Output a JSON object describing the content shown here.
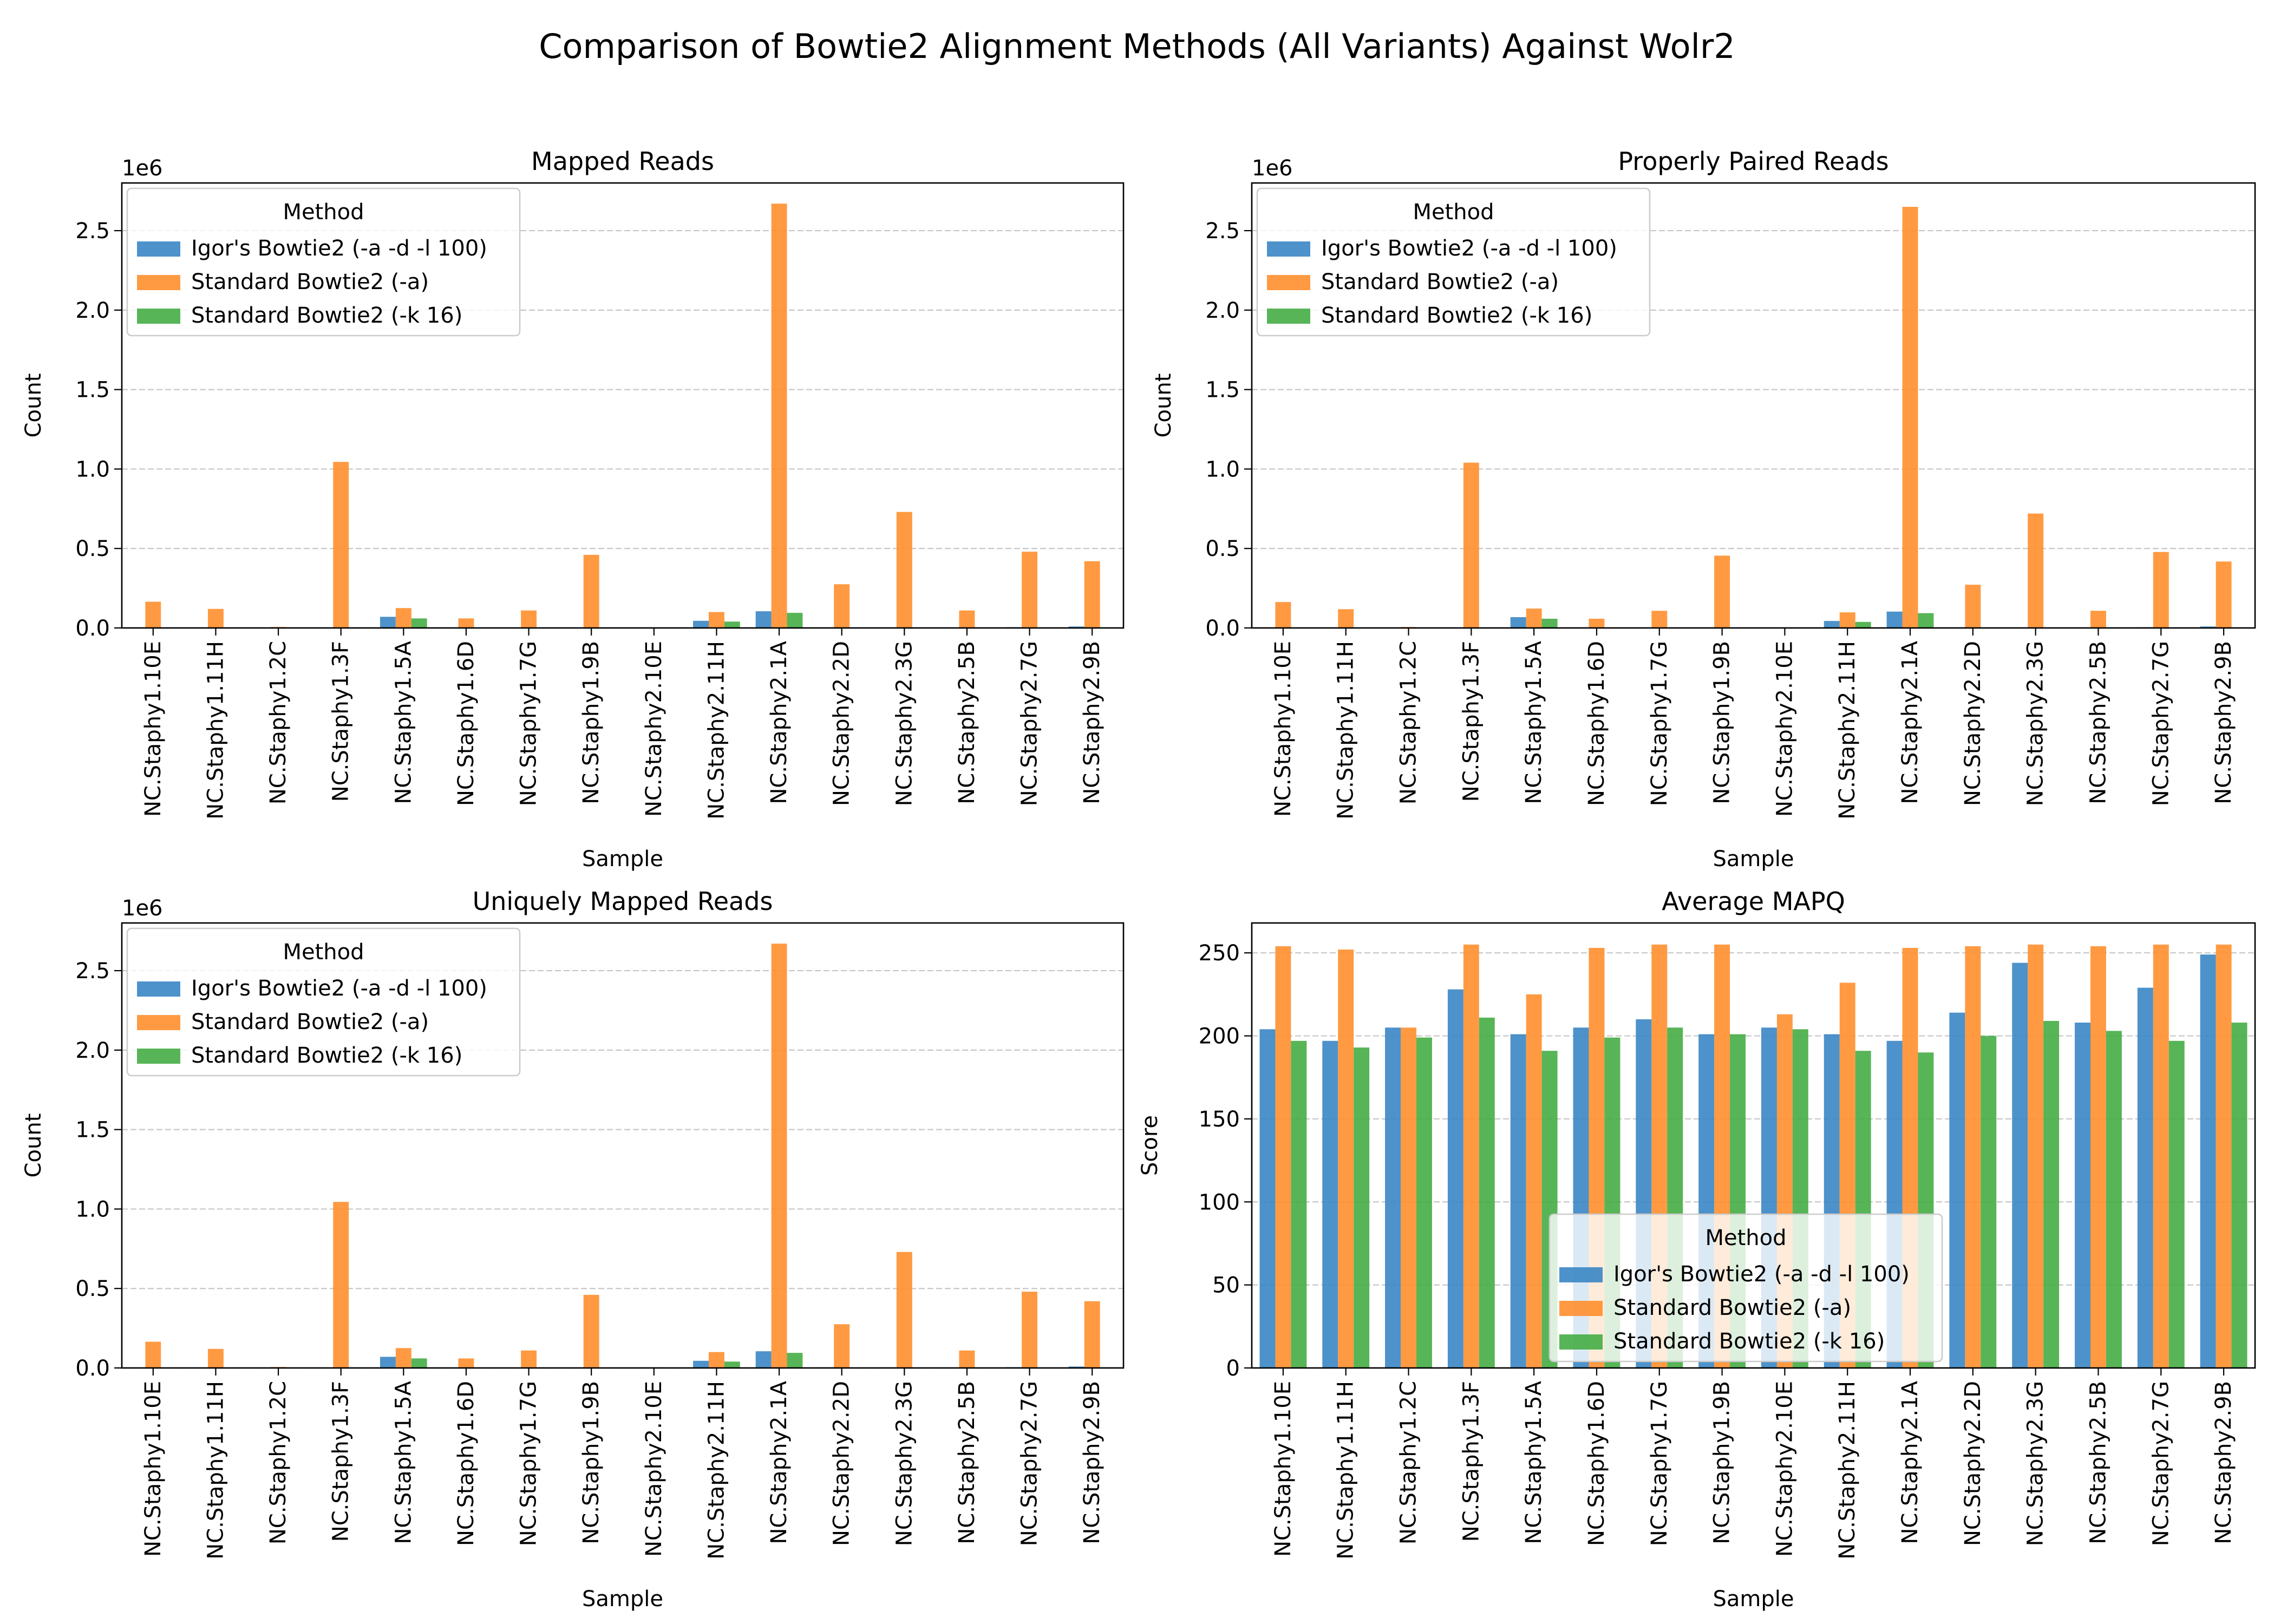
{
  "figure": {
    "suptitle": "Comparison of Bowtie2 Alignment Methods (All Variants) Against Wolr2"
  },
  "colors": {
    "Igor's Bowtie2 (-a -d -l 100)": "#3a86c4",
    "Standard Bowtie2 (-a)": "#ff8f2e",
    "Standard Bowtie2 (-k 16)": "#45ad45"
  },
  "chart_data": [
    {
      "type": "bar",
      "title": "Mapped Reads",
      "xlabel": "Sample",
      "ylabel": "Count",
      "offset_text": "1e6",
      "ylim": [
        0,
        2800000
      ],
      "yticks": [
        0,
        500000,
        1000000,
        1500000,
        2000000,
        2500000
      ],
      "ytick_labels": [
        "0.0",
        "0.5",
        "1.0",
        "1.5",
        "2.0",
        "2.5"
      ],
      "grid": true,
      "legend": {
        "title": "Method",
        "placement": "top-left"
      },
      "categories": [
        "NC.Staphy1.10E",
        "NC.Staphy1.11H",
        "NC.Staphy1.2C",
        "NC.Staphy1.3F",
        "NC.Staphy1.5A",
        "NC.Staphy1.6D",
        "NC.Staphy1.7G",
        "NC.Staphy1.9B",
        "NC.Staphy2.10E",
        "NC.Staphy2.11H",
        "NC.Staphy2.1A",
        "NC.Staphy2.2D",
        "NC.Staphy2.3G",
        "NC.Staphy2.5B",
        "NC.Staphy2.7G",
        "NC.Staphy2.9B"
      ],
      "series": [
        {
          "name": "Igor's Bowtie2 (-a -d -l 100)",
          "values": [
            3000,
            2000,
            1000,
            2000,
            70000,
            1000,
            2000,
            3000,
            1000,
            45000,
            105000,
            4000,
            4000,
            2000,
            5000,
            9000
          ]
        },
        {
          "name": "Standard Bowtie2 (-a)",
          "values": [
            165000,
            120000,
            6000,
            1045000,
            125000,
            60000,
            110000,
            460000,
            4000,
            100000,
            2670000,
            275000,
            730000,
            110000,
            480000,
            420000
          ]
        },
        {
          "name": "Standard Bowtie2 (-k 16)",
          "values": [
            1500,
            1000,
            500,
            1000,
            60000,
            500,
            1000,
            1500,
            500,
            40000,
            95000,
            2000,
            2000,
            1000,
            2000,
            4000
          ]
        }
      ]
    },
    {
      "type": "bar",
      "title": "Properly Paired Reads",
      "xlabel": "Sample",
      "ylabel": "Count",
      "offset_text": "1e6",
      "ylim": [
        0,
        2800000
      ],
      "yticks": [
        0,
        500000,
        1000000,
        1500000,
        2000000,
        2500000
      ],
      "ytick_labels": [
        "0.0",
        "0.5",
        "1.0",
        "1.5",
        "2.0",
        "2.5"
      ],
      "grid": true,
      "legend": {
        "title": "Method",
        "placement": "top-left"
      },
      "categories": [
        "NC.Staphy1.10E",
        "NC.Staphy1.11H",
        "NC.Staphy1.2C",
        "NC.Staphy1.3F",
        "NC.Staphy1.5A",
        "NC.Staphy1.6D",
        "NC.Staphy1.7G",
        "NC.Staphy1.9B",
        "NC.Staphy2.10E",
        "NC.Staphy2.11H",
        "NC.Staphy2.1A",
        "NC.Staphy2.2D",
        "NC.Staphy2.3G",
        "NC.Staphy2.5B",
        "NC.Staphy2.7G",
        "NC.Staphy2.9B"
      ],
      "series": [
        {
          "name": "Igor's Bowtie2 (-a -d -l 100)",
          "values": [
            3000,
            2000,
            1000,
            2000,
            68000,
            1000,
            2000,
            3000,
            1000,
            44000,
            103000,
            4000,
            4000,
            2000,
            5000,
            9000
          ]
        },
        {
          "name": "Standard Bowtie2 (-a)",
          "values": [
            163000,
            118000,
            6000,
            1040000,
            122000,
            58000,
            108000,
            455000,
            4000,
            98000,
            2650000,
            272000,
            720000,
            108000,
            478000,
            418000
          ]
        },
        {
          "name": "Standard Bowtie2 (-k 16)",
          "values": [
            1500,
            1000,
            500,
            1000,
            58000,
            500,
            1000,
            1500,
            500,
            38000,
            93000,
            2000,
            2000,
            1000,
            2000,
            4000
          ]
        }
      ]
    },
    {
      "type": "bar",
      "title": "Uniquely Mapped Reads",
      "xlabel": "Sample",
      "ylabel": "Count",
      "offset_text": "1e6",
      "ylim": [
        0,
        2800000
      ],
      "yticks": [
        0,
        500000,
        1000000,
        1500000,
        2000000,
        2500000
      ],
      "ytick_labels": [
        "0.0",
        "0.5",
        "1.0",
        "1.5",
        "2.0",
        "2.5"
      ],
      "grid": true,
      "legend": {
        "title": "Method",
        "placement": "top-left"
      },
      "categories": [
        "NC.Staphy1.10E",
        "NC.Staphy1.11H",
        "NC.Staphy1.2C",
        "NC.Staphy1.3F",
        "NC.Staphy1.5A",
        "NC.Staphy1.6D",
        "NC.Staphy1.7G",
        "NC.Staphy1.9B",
        "NC.Staphy2.10E",
        "NC.Staphy2.11H",
        "NC.Staphy2.1A",
        "NC.Staphy2.2D",
        "NC.Staphy2.3G",
        "NC.Staphy2.5B",
        "NC.Staphy2.7G",
        "NC.Staphy2.9B"
      ],
      "series": [
        {
          "name": "Igor's Bowtie2 (-a -d -l 100)",
          "values": [
            3000,
            2000,
            1000,
            2000,
            70000,
            1000,
            2000,
            3000,
            1000,
            45000,
            105000,
            4000,
            4000,
            2000,
            5000,
            9000
          ]
        },
        {
          "name": "Standard Bowtie2 (-a)",
          "values": [
            165000,
            120000,
            6000,
            1045000,
            125000,
            60000,
            110000,
            460000,
            4000,
            100000,
            2670000,
            275000,
            730000,
            110000,
            480000,
            420000
          ]
        },
        {
          "name": "Standard Bowtie2 (-k 16)",
          "values": [
            1500,
            1000,
            500,
            1000,
            60000,
            500,
            1000,
            1500,
            500,
            40000,
            95000,
            2000,
            2000,
            1000,
            2000,
            4000
          ]
        }
      ]
    },
    {
      "type": "bar",
      "title": "Average MAPQ",
      "xlabel": "Sample",
      "ylabel": "Score",
      "offset_text": "",
      "ylim": [
        0,
        268
      ],
      "yticks": [
        0,
        50,
        100,
        150,
        200,
        250
      ],
      "ytick_labels": [
        "0",
        "50",
        "100",
        "150",
        "200",
        "250"
      ],
      "grid": true,
      "legend": {
        "title": "Method",
        "placement": "lower-center"
      },
      "categories": [
        "NC.Staphy1.10E",
        "NC.Staphy1.11H",
        "NC.Staphy1.2C",
        "NC.Staphy1.3F",
        "NC.Staphy1.5A",
        "NC.Staphy1.6D",
        "NC.Staphy1.7G",
        "NC.Staphy1.9B",
        "NC.Staphy2.10E",
        "NC.Staphy2.11H",
        "NC.Staphy2.1A",
        "NC.Staphy2.2D",
        "NC.Staphy2.3G",
        "NC.Staphy2.5B",
        "NC.Staphy2.7G",
        "NC.Staphy2.9B"
      ],
      "series": [
        {
          "name": "Igor's Bowtie2 (-a -d -l 100)",
          "values": [
            204,
            197,
            205,
            228,
            201,
            205,
            210,
            201,
            205,
            201,
            197,
            214,
            244,
            208,
            229,
            249
          ]
        },
        {
          "name": "Standard Bowtie2 (-a)",
          "values": [
            254,
            252,
            205,
            255,
            225,
            253,
            255,
            255,
            213,
            232,
            253,
            254,
            255,
            254,
            255,
            255
          ]
        },
        {
          "name": "Standard Bowtie2 (-k 16)",
          "values": [
            197,
            193,
            199,
            211,
            191,
            199,
            205,
            201,
            204,
            191,
            190,
            200,
            209,
            203,
            197,
            208
          ]
        }
      ]
    }
  ]
}
